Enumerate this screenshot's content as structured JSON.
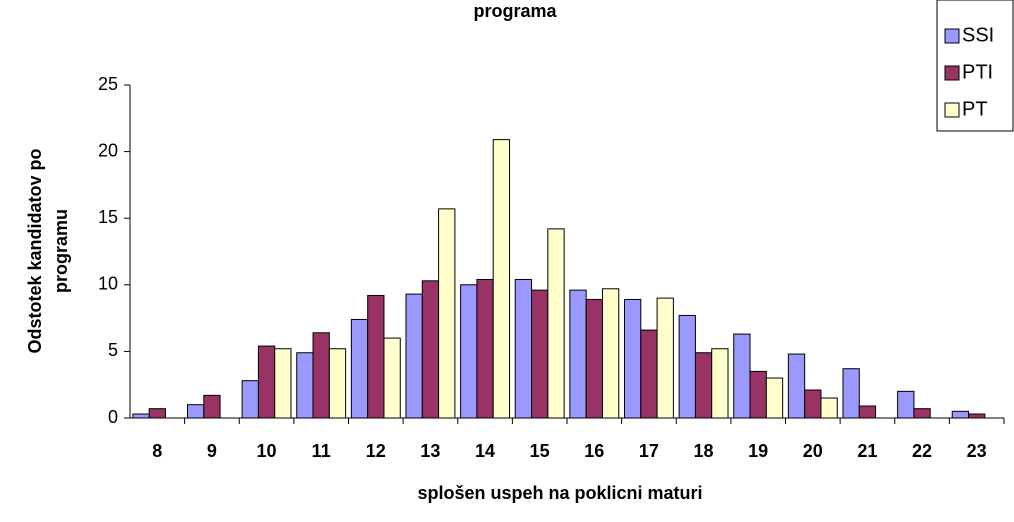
{
  "chart_data": {
    "type": "bar",
    "title": "programa",
    "x_label": "splošen uspeh na poklicni maturi",
    "y_label": [
      "Odstotek kandidatov po",
      "programu"
    ],
    "categories": [
      "8",
      "9",
      "10",
      "11",
      "12",
      "13",
      "14",
      "15",
      "16",
      "17",
      "18",
      "19",
      "20",
      "21",
      "22",
      "23"
    ],
    "series": [
      {
        "name": "SSI",
        "color": "#9999ff",
        "values": [
          0.3,
          1.0,
          2.8,
          4.9,
          7.4,
          9.3,
          10.0,
          10.4,
          9.6,
          8.9,
          7.7,
          6.3,
          4.8,
          3.7,
          2.0,
          0.5
        ]
      },
      {
        "name": "PTI",
        "color": "#993366",
        "values": [
          0.7,
          1.7,
          5.4,
          6.4,
          9.2,
          10.3,
          10.4,
          9.6,
          8.9,
          6.6,
          4.9,
          3.5,
          2.1,
          0.9,
          0.7,
          0.3
        ]
      },
      {
        "name": "PT",
        "color": "#ffffcc",
        "values": [
          0,
          0,
          5.2,
          5.2,
          6.0,
          15.7,
          20.9,
          14.2,
          9.7,
          9.0,
          5.2,
          3.0,
          1.5,
          0,
          0,
          0
        ]
      }
    ],
    "ylim": [
      0,
      25
    ],
    "yticks": [
      0,
      5,
      10,
      15,
      20,
      25
    ],
    "legend": "top-right"
  }
}
